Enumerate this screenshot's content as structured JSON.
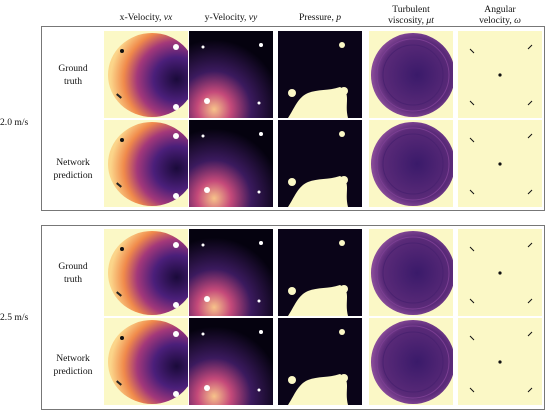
{
  "columns": [
    {
      "line1": "x-Velocity, ",
      "sym": "vx",
      "line2": ""
    },
    {
      "line1": "y-Velocity, ",
      "sym": "vy",
      "line2": ""
    },
    {
      "line1": "Pressure, ",
      "sym": "p",
      "line2": ""
    },
    {
      "line1": "Turbulent",
      "sym": "μt",
      "line2": "viscosity, "
    },
    {
      "line1": "Angular",
      "sym": "ω",
      "line2": "velocity, "
    }
  ],
  "groups": [
    {
      "speed": "2.0 m/s",
      "rows": [
        {
          "l1": "Ground",
          "l2": "truth"
        },
        {
          "l1": "Network",
          "l2": "prediction"
        }
      ]
    },
    {
      "speed": "2.5 m/s",
      "rows": [
        {
          "l1": "Ground",
          "l2": "truth"
        },
        {
          "l1": "Network",
          "l2": "prediction"
        }
      ]
    }
  ],
  "colors": {
    "background_field": "#fbf8c6",
    "dark": "#0a0418",
    "purple": "#5a2a78",
    "orange": "#f08a4b"
  }
}
